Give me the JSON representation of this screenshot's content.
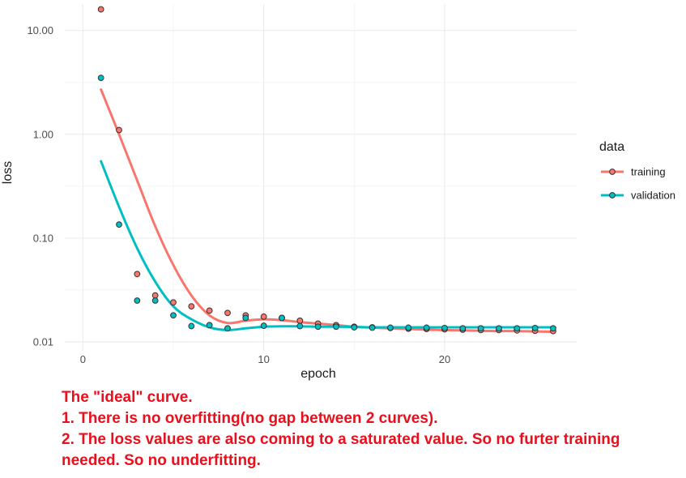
{
  "chart_data": {
    "type": "scatter",
    "xlabel": "epoch",
    "ylabel": "loss",
    "x_scale": "linear",
    "y_scale": "log10",
    "xlim": [
      -1,
      27.3
    ],
    "ylim": [
      0.0082,
      18
    ],
    "x_ticks": [
      0,
      10,
      20
    ],
    "x_tick_labels": [
      "0",
      "10",
      "20"
    ],
    "y_ticks": [
      0.01,
      0.1,
      1,
      10
    ],
    "y_tick_labels": [
      "0.01",
      "0.10",
      "1.00",
      "10.00"
    ],
    "grid": true,
    "legend": {
      "title": "data",
      "position": "right"
    },
    "series": [
      {
        "name": "training",
        "color": "#F8766D",
        "points": [
          [
            1,
            16.0
          ],
          [
            2,
            1.1
          ],
          [
            3,
            0.045
          ],
          [
            4,
            0.028
          ],
          [
            5,
            0.024
          ],
          [
            6,
            0.022
          ],
          [
            7,
            0.02
          ],
          [
            8,
            0.019
          ],
          [
            9,
            0.018
          ],
          [
            10,
            0.0175
          ],
          [
            11,
            0.017
          ],
          [
            12,
            0.016
          ],
          [
            13,
            0.015
          ],
          [
            14,
            0.0145
          ],
          [
            15,
            0.014
          ],
          [
            16,
            0.0138
          ],
          [
            17,
            0.0136
          ],
          [
            18,
            0.0134
          ],
          [
            19,
            0.0133
          ],
          [
            20,
            0.0132
          ],
          [
            21,
            0.0131
          ],
          [
            22,
            0.013
          ],
          [
            23,
            0.013
          ],
          [
            24,
            0.0129
          ],
          [
            25,
            0.0128
          ],
          [
            26,
            0.0127
          ]
        ],
        "smooth": [
          [
            1,
            2.7
          ],
          [
            2,
            1.0
          ],
          [
            3,
            0.36
          ],
          [
            4,
            0.13
          ],
          [
            5,
            0.055
          ],
          [
            6,
            0.028
          ],
          [
            7,
            0.018
          ],
          [
            8,
            0.0152
          ],
          [
            9,
            0.016
          ],
          [
            10,
            0.0165
          ],
          [
            11,
            0.0162
          ],
          [
            12,
            0.0155
          ],
          [
            13,
            0.015
          ],
          [
            14,
            0.0145
          ],
          [
            15,
            0.014
          ],
          [
            16,
            0.0137
          ],
          [
            17,
            0.0135
          ],
          [
            18,
            0.0133
          ],
          [
            19,
            0.0131
          ],
          [
            20,
            0.013
          ],
          [
            21,
            0.0129
          ],
          [
            22,
            0.0128
          ],
          [
            23,
            0.0127
          ],
          [
            24,
            0.0127
          ],
          [
            25,
            0.0126
          ],
          [
            26,
            0.0125
          ]
        ]
      },
      {
        "name": "validation",
        "color": "#00BFC4",
        "points": [
          [
            1,
            3.5
          ],
          [
            2,
            0.135
          ],
          [
            3,
            0.025
          ],
          [
            4,
            0.025
          ],
          [
            5,
            0.018
          ],
          [
            6,
            0.0142
          ],
          [
            7,
            0.0145
          ],
          [
            8,
            0.0135
          ],
          [
            9,
            0.017
          ],
          [
            10,
            0.0143
          ],
          [
            11,
            0.017
          ],
          [
            12,
            0.0142
          ],
          [
            13,
            0.014
          ],
          [
            14,
            0.014
          ],
          [
            15,
            0.0138
          ],
          [
            16,
            0.0137
          ],
          [
            17,
            0.0137
          ],
          [
            18,
            0.0137
          ],
          [
            19,
            0.0137
          ],
          [
            20,
            0.0136
          ],
          [
            21,
            0.0135
          ],
          [
            22,
            0.0135
          ],
          [
            23,
            0.0135
          ],
          [
            24,
            0.0135
          ],
          [
            25,
            0.0136
          ],
          [
            26,
            0.0135
          ]
        ],
        "smooth": [
          [
            1,
            0.55
          ],
          [
            2,
            0.2
          ],
          [
            3,
            0.08
          ],
          [
            4,
            0.038
          ],
          [
            5,
            0.022
          ],
          [
            6,
            0.0165
          ],
          [
            7,
            0.0138
          ],
          [
            8,
            0.013
          ],
          [
            9,
            0.0135
          ],
          [
            10,
            0.014
          ],
          [
            11,
            0.0141
          ],
          [
            12,
            0.0141
          ],
          [
            13,
            0.014
          ],
          [
            14,
            0.014
          ],
          [
            15,
            0.0139
          ],
          [
            16,
            0.0138
          ],
          [
            17,
            0.0138
          ],
          [
            18,
            0.0138
          ],
          [
            19,
            0.0138
          ],
          [
            20,
            0.0138
          ],
          [
            21,
            0.0138
          ],
          [
            22,
            0.0138
          ],
          [
            23,
            0.0138
          ],
          [
            24,
            0.0138
          ],
          [
            25,
            0.0138
          ],
          [
            26,
            0.0138
          ]
        ]
      }
    ]
  },
  "caption": {
    "line1": "The \"ideal\" curve.",
    "line2": "1. There is no overfitting(no gap between 2 curves).",
    "line3": "2. The loss values are also coming to a saturated value. So no furter training needed. So no underfitting."
  }
}
